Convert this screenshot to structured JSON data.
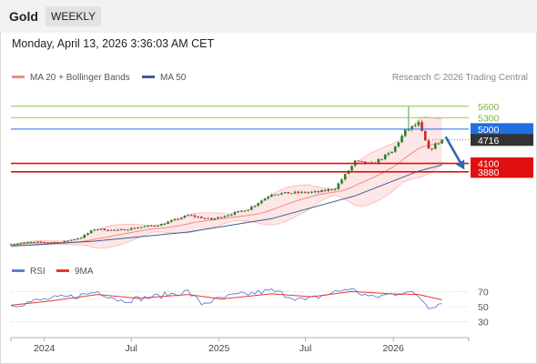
{
  "header": {
    "instrument": "Gold",
    "timeframe": "WEEKLY",
    "datetime": "Monday, April 13, 2026 3:36:03 AM CET"
  },
  "legend": {
    "ma20": "MA 20 + Bollinger Bands",
    "ma50": "MA 50",
    "credit": "Research © 2026 Trading Central"
  },
  "rsi_legend": {
    "rsi": "RSI",
    "ma": "9MA"
  },
  "colors": {
    "up": "#2e7d32",
    "down": "#c62828",
    "ma20": "#f28b82",
    "band_fill": "#fde0e0",
    "ma50": "#3d5a99",
    "rsi": "#5b7fd6",
    "rsi_ma": "#e53935",
    "resistance": "#8bc34a",
    "pivot": "#1e6fe0",
    "support": "#e01010"
  },
  "chart_data": [
    {
      "type": "candlestick",
      "subtitle": "price",
      "ylim": [
        1750,
        6000
      ],
      "x_ticks": [
        "2024",
        "Jul",
        "2025",
        "Jul",
        "2026"
      ],
      "anchors": [
        {
          "x": "2023-10-23",
          "y": 1980
        },
        {
          "x": "2023-12-04",
          "y": 2030
        },
        {
          "x": "2024-02-05",
          "y": 2030
        },
        {
          "x": "2024-03-18",
          "y": 2160
        },
        {
          "x": "2024-04-15",
          "y": 2380
        },
        {
          "x": "2024-06-03",
          "y": 2340
        },
        {
          "x": "2024-07-15",
          "y": 2420
        },
        {
          "x": "2024-09-02",
          "y": 2500
        },
        {
          "x": "2024-10-28",
          "y": 2740
        },
        {
          "x": "2024-12-16",
          "y": 2630
        },
        {
          "x": "2025-01-27",
          "y": 2780
        },
        {
          "x": "2025-03-03",
          "y": 2900
        },
        {
          "x": "2025-04-21",
          "y": 3300
        },
        {
          "x": "2025-06-09",
          "y": 3330
        },
        {
          "x": "2025-07-28",
          "y": 3350
        },
        {
          "x": "2025-09-01",
          "y": 3450
        },
        {
          "x": "2025-10-13",
          "y": 4150
        },
        {
          "x": "2025-11-17",
          "y": 4080
        },
        {
          "x": "2025-12-29",
          "y": 4400
        },
        {
          "x": "2026-01-26",
          "y": 4950
        },
        {
          "x": "2026-02-23",
          "y": 5150
        },
        {
          "x": "2026-03-16",
          "y": 4450
        },
        {
          "x": "2026-04-13",
          "y": 4716
        }
      ],
      "ma50_anchors": [
        {
          "x": "2023-10-23",
          "y": 1930
        },
        {
          "x": "2024-04-15",
          "y": 2060
        },
        {
          "x": "2024-10-28",
          "y": 2300
        },
        {
          "x": "2025-04-21",
          "y": 2650
        },
        {
          "x": "2025-10-13",
          "y": 3250
        },
        {
          "x": "2026-02-23",
          "y": 3900
        },
        {
          "x": "2026-04-13",
          "y": 4060
        }
      ],
      "levels": [
        {
          "label": "5600",
          "value": 5600,
          "kind": "resistance"
        },
        {
          "label": "5300",
          "value": 5300,
          "kind": "resistance"
        },
        {
          "label": "5000",
          "value": 5000,
          "kind": "pivot"
        },
        {
          "label": "4716",
          "value": 4716,
          "kind": "last"
        },
        {
          "label": "4100",
          "value": 4100,
          "kind": "support"
        },
        {
          "label": "3880",
          "value": 3880,
          "kind": "support"
        }
      ],
      "forecast": {
        "from": {
          "x": "2026-04-13",
          "y": 4800
        },
        "to": {
          "x": "2026-06-01",
          "y": 4060
        }
      }
    },
    {
      "type": "line",
      "subtitle": "RSI",
      "ylim": [
        20,
        80
      ],
      "y_ticks": [
        70,
        50,
        30
      ],
      "series": [
        {
          "name": "RSI",
          "anchors": [
            {
              "x": "2023-10-23",
              "y": 52
            },
            {
              "x": "2024-01-08",
              "y": 60
            },
            {
              "x": "2024-03-11",
              "y": 64
            },
            {
              "x": "2024-04-22",
              "y": 70
            },
            {
              "x": "2024-06-10",
              "y": 58
            },
            {
              "x": "2024-08-05",
              "y": 62
            },
            {
              "x": "2024-10-28",
              "y": 70
            },
            {
              "x": "2024-11-25",
              "y": 54
            },
            {
              "x": "2025-01-27",
              "y": 64
            },
            {
              "x": "2025-04-21",
              "y": 71
            },
            {
              "x": "2025-06-30",
              "y": 58
            },
            {
              "x": "2025-09-29",
              "y": 74
            },
            {
              "x": "2025-11-17",
              "y": 62
            },
            {
              "x": "2026-01-26",
              "y": 70
            },
            {
              "x": "2026-02-23",
              "y": 64
            },
            {
              "x": "2026-03-16",
              "y": 50
            },
            {
              "x": "2026-04-13",
              "y": 55
            }
          ]
        },
        {
          "name": "9MA",
          "anchors": [
            {
              "x": "2023-10-23",
              "y": 52
            },
            {
              "x": "2024-01-08",
              "y": 57
            },
            {
              "x": "2024-04-22",
              "y": 66
            },
            {
              "x": "2024-07-15",
              "y": 61
            },
            {
              "x": "2024-10-28",
              "y": 66
            },
            {
              "x": "2025-01-06",
              "y": 60
            },
            {
              "x": "2025-04-21",
              "y": 67
            },
            {
              "x": "2025-07-14",
              "y": 63
            },
            {
              "x": "2025-10-06",
              "y": 70
            },
            {
              "x": "2025-12-29",
              "y": 67
            },
            {
              "x": "2026-02-23",
              "y": 66
            },
            {
              "x": "2026-04-13",
              "y": 59
            }
          ]
        }
      ]
    }
  ]
}
